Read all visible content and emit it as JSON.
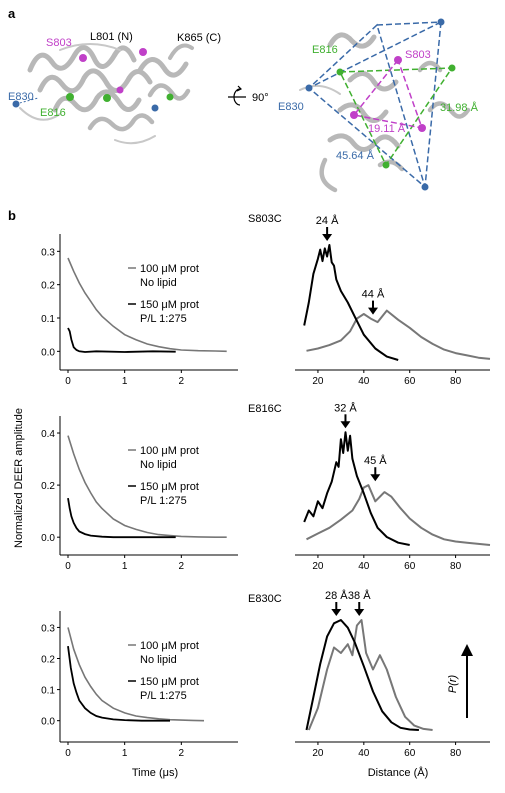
{
  "panel_a": {
    "label": "a",
    "rotation_label": "90°",
    "left_labels": {
      "s803": "S803",
      "l801": "L801 (N)",
      "k865": "K865 (C)",
      "e816": "E816",
      "e830": "E830"
    },
    "right_labels": {
      "e816": "E816",
      "s803": "S803",
      "e830": "E830",
      "d_green": "31.98 Å",
      "d_magenta": "19.11 Å",
      "d_blue": "45.64 Å"
    },
    "colors": {
      "magenta": "#c040c8",
      "green": "#40b030",
      "blue": "#3a6aa8",
      "ribbon": "#b8b8b8"
    }
  },
  "panel_b": {
    "label": "b",
    "y_axis_title": "Normalized DEER amplitude",
    "x_axis_time": "Time (μs)",
    "x_axis_distance": "Distance (Å)",
    "pr_label": "P(r)",
    "legend_grey_line1": "100 μM prot",
    "legend_grey_line2": "No lipid",
    "legend_black_line1": "150 μM prot",
    "legend_black_line2": "P/L 1:275"
  },
  "colors": {
    "grey_trace": "#777777",
    "black_trace": "#000000"
  },
  "chart_data": [
    {
      "type": "line",
      "mutant": "S803C",
      "panel": "time-domain",
      "x_ticks": [
        0,
        1,
        2
      ],
      "y_ticks": [
        0.0,
        0.1,
        0.2,
        0.3
      ],
      "xlim": [
        0,
        3
      ],
      "ylim": [
        -0.02,
        0.34
      ],
      "series": [
        {
          "name": "100 μM prot, No lipid",
          "x": [
            0,
            0.1,
            0.2,
            0.3,
            0.4,
            0.5,
            0.6,
            0.8,
            1.0,
            1.2,
            1.4,
            1.6,
            1.8,
            2.0,
            2.3,
            2.6,
            2.8
          ],
          "y": [
            0.28,
            0.24,
            0.205,
            0.175,
            0.15,
            0.125,
            0.105,
            0.075,
            0.05,
            0.035,
            0.022,
            0.014,
            0.008,
            0.004,
            0.002,
            0.001,
            0.0
          ]
        },
        {
          "name": "150 μM prot, P/L 1:275",
          "x": [
            0,
            0.03,
            0.06,
            0.1,
            0.15,
            0.2,
            0.3,
            0.5,
            1.0,
            1.5,
            1.9
          ],
          "y": [
            0.07,
            0.06,
            0.035,
            0.012,
            0.004,
            0.0,
            -0.002,
            0.0,
            -0.002,
            0.0,
            -0.001
          ]
        }
      ]
    },
    {
      "type": "line",
      "mutant": "S803C",
      "panel": "distance-distribution",
      "x_ticks": [
        20,
        40,
        60,
        80
      ],
      "xlim": [
        10,
        95
      ],
      "annotations": [
        {
          "label": "24 Å",
          "x": 24
        },
        {
          "label": "44 Å",
          "x": 44
        }
      ],
      "series": [
        {
          "name": "100 μM prot, No lipid",
          "x": [
            15,
            20,
            25,
            30,
            34,
            37,
            40,
            43,
            46,
            50,
            55,
            60,
            65,
            70,
            75,
            80,
            85,
            90,
            95
          ],
          "y": [
            0.08,
            0.1,
            0.13,
            0.17,
            0.25,
            0.36,
            0.4,
            0.36,
            0.33,
            0.43,
            0.35,
            0.28,
            0.2,
            0.14,
            0.09,
            0.06,
            0.04,
            0.02,
            0.01
          ]
        },
        {
          "name": "150 μM prot, P/L 1:275",
          "x": [
            14,
            16,
            18,
            20,
            21,
            22,
            23,
            24,
            25,
            26,
            27,
            28,
            30,
            33,
            36,
            40,
            45,
            50,
            55
          ],
          "y": [
            0.3,
            0.5,
            0.75,
            0.88,
            0.96,
            0.86,
            0.97,
            0.9,
            1.0,
            0.85,
            0.82,
            0.7,
            0.6,
            0.5,
            0.38,
            0.22,
            0.1,
            0.03,
            0.0
          ]
        }
      ]
    },
    {
      "type": "line",
      "mutant": "E816C",
      "panel": "time-domain",
      "x_ticks": [
        0,
        1,
        2
      ],
      "y_ticks": [
        0.0,
        0.2,
        0.4
      ],
      "xlim": [
        0,
        3
      ],
      "ylim": [
        -0.03,
        0.45
      ],
      "series": [
        {
          "name": "100 μM prot, No lipid",
          "x": [
            0,
            0.1,
            0.2,
            0.3,
            0.4,
            0.5,
            0.6,
            0.8,
            1.0,
            1.2,
            1.4,
            1.6,
            1.8,
            2.0,
            2.3,
            2.6,
            2.8
          ],
          "y": [
            0.39,
            0.32,
            0.26,
            0.21,
            0.17,
            0.135,
            0.11,
            0.07,
            0.045,
            0.03,
            0.018,
            0.01,
            0.006,
            0.003,
            0.001,
            0.0,
            0.0
          ]
        },
        {
          "name": "150 μM prot, P/L 1:275",
          "x": [
            0,
            0.03,
            0.06,
            0.1,
            0.15,
            0.2,
            0.3,
            0.4,
            0.6,
            0.8,
            1.0,
            1.5,
            1.9
          ],
          "y": [
            0.15,
            0.11,
            0.08,
            0.055,
            0.035,
            0.022,
            0.012,
            0.006,
            0.002,
            0.0,
            0.0,
            0.0,
            0.0
          ]
        }
      ]
    },
    {
      "type": "line",
      "mutant": "E816C",
      "panel": "distance-distribution",
      "x_ticks": [
        20,
        40,
        60,
        80
      ],
      "xlim": [
        10,
        95
      ],
      "annotations": [
        {
          "label": "32 Å",
          "x": 32
        },
        {
          "label": "45 Å",
          "x": 45
        }
      ],
      "series": [
        {
          "name": "100 μM prot, No lipid",
          "x": [
            15,
            20,
            25,
            30,
            35,
            38,
            40,
            42,
            45,
            49,
            52,
            56,
            60,
            65,
            70,
            75,
            80,
            85,
            90,
            95
          ],
          "y": [
            0.05,
            0.1,
            0.15,
            0.22,
            0.3,
            0.4,
            0.5,
            0.52,
            0.38,
            0.46,
            0.42,
            0.32,
            0.23,
            0.15,
            0.09,
            0.05,
            0.03,
            0.02,
            0.01,
            0.0
          ]
        },
        {
          "name": "150 μM prot, P/L 1:275",
          "x": [
            14,
            16,
            18,
            20,
            22,
            24,
            26,
            28,
            29,
            30,
            31,
            32,
            33,
            34,
            35,
            37,
            40,
            43,
            46,
            50,
            55,
            60
          ],
          "y": [
            0.2,
            0.3,
            0.25,
            0.38,
            0.32,
            0.45,
            0.55,
            0.72,
            0.68,
            0.92,
            0.8,
            0.98,
            0.82,
            0.95,
            0.75,
            0.6,
            0.45,
            0.28,
            0.15,
            0.07,
            0.02,
            0.0
          ]
        }
      ]
    },
    {
      "type": "line",
      "mutant": "E830C",
      "panel": "time-domain",
      "x_ticks": [
        0,
        1,
        2
      ],
      "y_ticks": [
        0.0,
        0.1,
        0.2,
        0.3
      ],
      "xlim": [
        0,
        3
      ],
      "ylim": [
        -0.03,
        0.34
      ],
      "series": [
        {
          "name": "100 μM prot, No lipid",
          "x": [
            0,
            0.1,
            0.2,
            0.3,
            0.4,
            0.5,
            0.6,
            0.8,
            1.0,
            1.2,
            1.4,
            1.6,
            1.8,
            2.0,
            2.2,
            2.4
          ],
          "y": [
            0.3,
            0.23,
            0.18,
            0.14,
            0.11,
            0.085,
            0.065,
            0.04,
            0.025,
            0.015,
            0.01,
            0.006,
            0.003,
            0.002,
            0.001,
            0.0
          ]
        },
        {
          "name": "150 μM prot, P/L 1:275",
          "x": [
            0,
            0.05,
            0.1,
            0.15,
            0.2,
            0.3,
            0.4,
            0.5,
            0.6,
            0.8,
            1.0,
            1.3,
            1.6,
            1.8
          ],
          "y": [
            0.24,
            0.17,
            0.12,
            0.09,
            0.065,
            0.04,
            0.025,
            0.015,
            0.01,
            0.004,
            0.002,
            0.0,
            0.0,
            0.0
          ]
        }
      ]
    },
    {
      "type": "line",
      "mutant": "E830C",
      "panel": "distance-distribution",
      "x_ticks": [
        20,
        40,
        60,
        80
      ],
      "xlim": [
        10,
        95
      ],
      "annotations": [
        {
          "label": "28 Å",
          "x": 28
        },
        {
          "label": "38 Å",
          "x": 38
        }
      ],
      "series": [
        {
          "name": "100 μM prot, No lipid",
          "x": [
            16,
            20,
            24,
            27,
            30,
            33,
            35,
            37,
            39,
            41,
            44,
            47,
            50,
            54,
            58,
            62,
            66,
            70
          ],
          "y": [
            0.0,
            0.2,
            0.55,
            0.75,
            0.7,
            0.78,
            0.68,
            0.95,
            1.0,
            0.7,
            0.55,
            0.68,
            0.55,
            0.3,
            0.12,
            0.04,
            0.01,
            0.0
          ]
        },
        {
          "name": "150 μM prot, P/L 1:275",
          "x": [
            15,
            18,
            21,
            24,
            27,
            30,
            33,
            36,
            40,
            44,
            48,
            52,
            56,
            60,
            64
          ],
          "y": [
            0.0,
            0.3,
            0.6,
            0.85,
            0.97,
            1.0,
            0.93,
            0.8,
            0.58,
            0.35,
            0.17,
            0.07,
            0.02,
            0.005,
            0.0
          ]
        }
      ]
    }
  ]
}
